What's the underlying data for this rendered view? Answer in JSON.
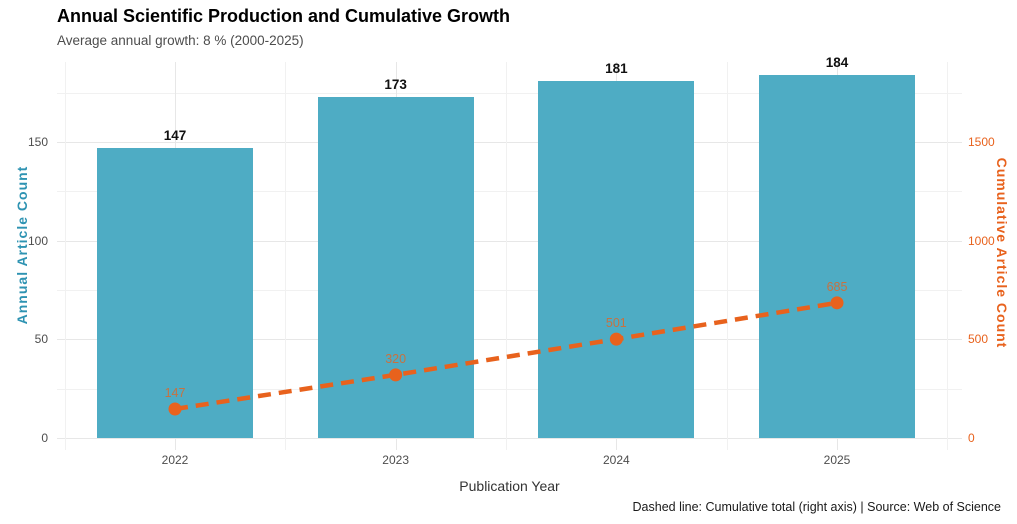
{
  "header": {
    "title": "Annual Scientific Production and Cumulative Growth",
    "subtitle": "Average annual growth: 8 % (2000-2025)"
  },
  "caption": "Dashed line: Cumulative total (right axis) | Source: Web of Science",
  "colors": {
    "bar": "#4EACC4",
    "line": "#E8621D",
    "left_axis_title": "#2E93B2",
    "right_axis_title": "#E8621D",
    "tick_label": "#4d4d4d",
    "grid_major": "#e7e7e7",
    "grid_minor": "#f1f1f1"
  },
  "chart_data": {
    "type": "bar",
    "overlay_type": "line",
    "title": "Annual Scientific Production and Cumulative Growth",
    "subtitle": "Average annual growth: 8 % (2000-2025)",
    "categories": [
      "2022",
      "2023",
      "2024",
      "2025"
    ],
    "series": [
      {
        "name": "Annual Article Count",
        "type": "bar",
        "axis": "left",
        "values": [
          147,
          173,
          181,
          184
        ],
        "data_labels": [
          "147",
          "173",
          "181",
          "184"
        ],
        "color": "#4EACC4"
      },
      {
        "name": "Cumulative Article Count",
        "type": "line",
        "line_style": "dashed",
        "markers": "circle",
        "axis": "right",
        "values": [
          147,
          320,
          501,
          685
        ],
        "data_labels": [
          "147",
          "320",
          "501",
          "685"
        ],
        "color": "#E8621D"
      }
    ],
    "xlabel": "Publication Year",
    "ylabel_left": "Annual Article Count",
    "ylabel_right": "Cumulative Article Count",
    "yticks_left": [
      0,
      50,
      100,
      150
    ],
    "ytick_labels_left": [
      "0",
      "50",
      "100",
      "150"
    ],
    "yticks_right": [
      0,
      500,
      1000,
      1500
    ],
    "ytick_labels_right": [
      "0",
      "500",
      "1000",
      "1500"
    ],
    "ylim_left": [
      0,
      190
    ],
    "ylim_right": [
      0,
      1900
    ],
    "right_to_left_ratio": 10,
    "grid": true,
    "legend": "none",
    "source_note": "Dashed line: Cumulative total (right axis) | Source: Web of Science"
  }
}
